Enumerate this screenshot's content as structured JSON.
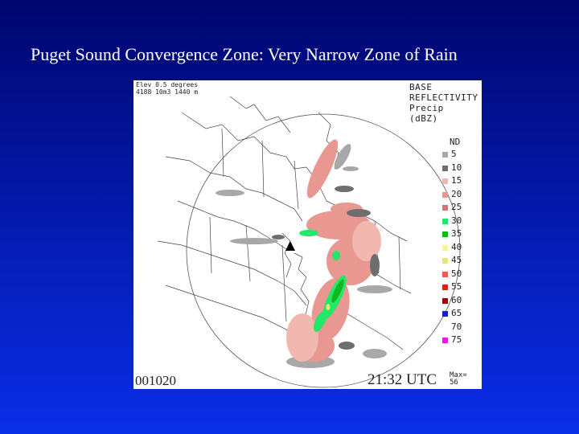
{
  "slide": {
    "title": "Puget Sound Convergence Zone:  Very Narrow Zone of Rain"
  },
  "radar": {
    "header_line1": "Elev 0.5 degrees",
    "header_line2": "4188 10m3 1440 m",
    "product_lines": [
      "BASE",
      "REFLECTIVITY",
      "Precip",
      "(dBZ)"
    ],
    "legend_nd": "ND",
    "legend": [
      {
        "label": "5",
        "color": "#a8a8a8"
      },
      {
        "label": "10",
        "color": "#6e6e6e"
      },
      {
        "label": "15",
        "color": "#f2b8b0"
      },
      {
        "label": "20",
        "color": "#e89890"
      },
      {
        "label": "25",
        "color": "#cc7a72"
      },
      {
        "label": "30",
        "color": "#22e86a"
      },
      {
        "label": "35",
        "color": "#12b81e"
      },
      {
        "label": "40",
        "color": "#f5f5a0"
      },
      {
        "label": "45",
        "color": "#e6e67a"
      },
      {
        "label": "50",
        "color": "#ee5a50"
      },
      {
        "label": "55",
        "color": "#d02818"
      },
      {
        "label": "60",
        "color": "#a00000"
      },
      {
        "label": "65",
        "color": "#1020d8"
      },
      {
        "label": "70",
        "color": "#ffffff"
      },
      {
        "label": "75",
        "color": "#e020e0"
      }
    ],
    "date_code": "001020",
    "time": "21:32 UTC",
    "max_label": "Max=",
    "max_value": "56"
  }
}
